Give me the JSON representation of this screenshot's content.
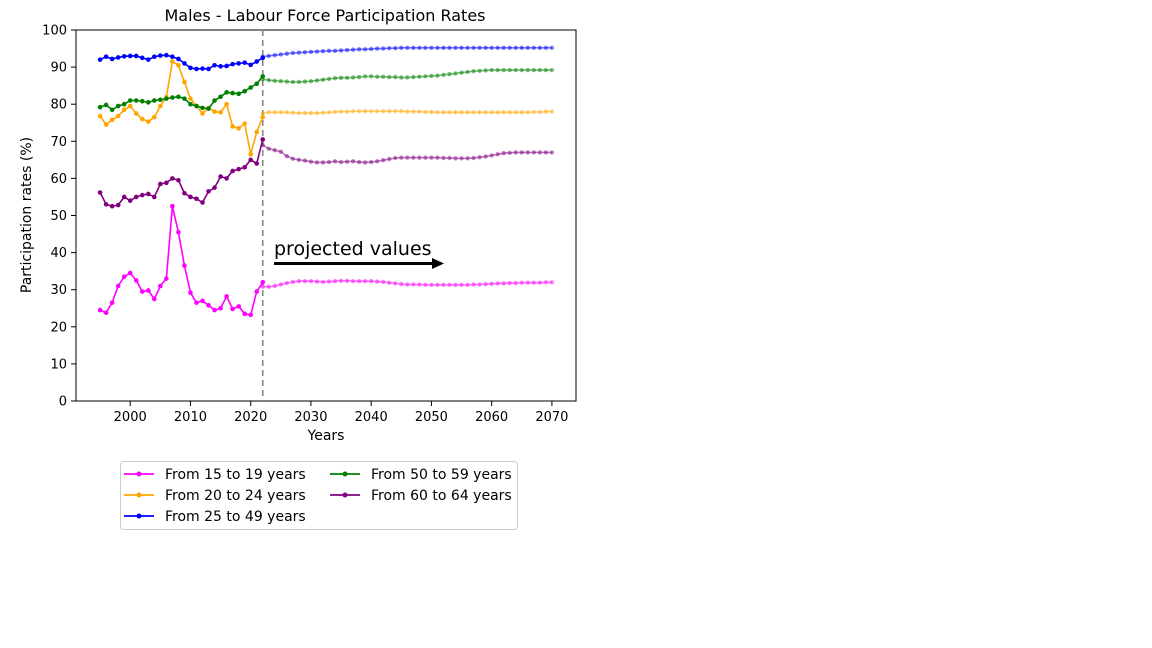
{
  "chart_data": {
    "type": "line",
    "title": "Males - Labour Force Participation Rates",
    "xlabel": "Years",
    "ylabel": "Participation rates (%)",
    "xlim": [
      1991,
      2074
    ],
    "ylim": [
      0,
      100
    ],
    "xticks": [
      2000,
      2010,
      2020,
      2030,
      2040,
      2050,
      2060,
      2070
    ],
    "yticks": [
      0,
      10,
      20,
      30,
      40,
      50,
      60,
      70,
      80,
      90,
      100
    ],
    "grid": false,
    "legend_position": "below",
    "projection_start_year": 2022,
    "annotation": "projected values",
    "historical_years": [
      1995,
      1996,
      1997,
      1998,
      1999,
      2000,
      2001,
      2002,
      2003,
      2004,
      2005,
      2006,
      2007,
      2008,
      2009,
      2010,
      2011,
      2012,
      2013,
      2014,
      2015,
      2016,
      2017,
      2018,
      2019,
      2020,
      2021,
      2022
    ],
    "series": [
      {
        "name": "From 15 to 19 years",
        "color": "#ff00ff",
        "historical": [
          24.5,
          23.8,
          26.5,
          31,
          33.5,
          34.5,
          32.5,
          29.5,
          29.8,
          27.5,
          31,
          33,
          52.5,
          45.5,
          36.5,
          29.2,
          26.5,
          27,
          25.8,
          24.5,
          25,
          28.2,
          24.8,
          25.5,
          23.5,
          23.2,
          29.5,
          32
        ],
        "projected": [
          30.8,
          30.8,
          31,
          31.4,
          31.8,
          32.1,
          32.3,
          32.3,
          32.3,
          32.2,
          32.1,
          32.2,
          32.3,
          32.4,
          32.4,
          32.3,
          32.3,
          32.3,
          32.3,
          32.2,
          32.1,
          31.9,
          31.7,
          31.5,
          31.4,
          31.4,
          31.4,
          31.3,
          31.3,
          31.3,
          31.3,
          31.3,
          31.3,
          31.3,
          31.3,
          31.4,
          31.4,
          31.5,
          31.6,
          31.7,
          31.7,
          31.8,
          31.8,
          31.9,
          31.9,
          31.9,
          31.9,
          32,
          32
        ]
      },
      {
        "name": "From 20 to 24 years",
        "color": "#ffa500",
        "historical": [
          76.8,
          74.5,
          75.8,
          76.8,
          78.5,
          79.5,
          77.5,
          76,
          75.3,
          76.5,
          79.5,
          82,
          91.5,
          90.5,
          86,
          81.5,
          79.5,
          77.5,
          79,
          78,
          77.8,
          80,
          74,
          73.5,
          74.8,
          66.5,
          72.5,
          76.5
        ],
        "projected": [
          77.5,
          77.8,
          77.8,
          77.8,
          77.8,
          77.7,
          77.6,
          77.6,
          77.6,
          77.6,
          77.7,
          77.8,
          77.9,
          78,
          78,
          78.1,
          78.1,
          78.1,
          78.1,
          78.1,
          78.1,
          78.1,
          78.1,
          78.1,
          78,
          78,
          78,
          77.9,
          77.9,
          77.8,
          77.8,
          77.8,
          77.8,
          77.8,
          77.8,
          77.8,
          77.8,
          77.8,
          77.8,
          77.8,
          77.8,
          77.8,
          77.8,
          77.8,
          77.8,
          77.9,
          77.9,
          78,
          78
        ]
      },
      {
        "name": "From 25 to 49 years",
        "color": "#0000ff",
        "historical": [
          92,
          92.8,
          92.2,
          92.6,
          92.9,
          93,
          93,
          92.5,
          92,
          92.8,
          93.1,
          93.2,
          92.8,
          92.2,
          91,
          89.8,
          89.5,
          89.6,
          89.5,
          90.5,
          90.2,
          90.3,
          90.8,
          91,
          91.2,
          90.6,
          91.5,
          92.5
        ],
        "projected": [
          92.8,
          93,
          93.2,
          93.4,
          93.6,
          93.8,
          93.9,
          94,
          94.1,
          94.2,
          94.3,
          94.4,
          94.4,
          94.5,
          94.6,
          94.7,
          94.8,
          94.8,
          94.9,
          95,
          95,
          95.1,
          95.1,
          95.2,
          95.2,
          95.2,
          95.2,
          95.2,
          95.2,
          95.2,
          95.2,
          95.2,
          95.2,
          95.2,
          95.2,
          95.2,
          95.2,
          95.2,
          95.2,
          95.2,
          95.2,
          95.2,
          95.2,
          95.2,
          95.2,
          95.2,
          95.2,
          95.2,
          95.2
        ]
      },
      {
        "name": "From 50 to 59 years",
        "color": "#008000",
        "historical": [
          79.2,
          79.8,
          78.5,
          79.5,
          80,
          81,
          81,
          80.8,
          80.5,
          81,
          81.2,
          81.5,
          81.8,
          82,
          81.5,
          80,
          79.5,
          79,
          78.8,
          81,
          82,
          83.2,
          83,
          82.8,
          83.5,
          84.5,
          85.5,
          87.5
        ],
        "projected": [
          86.7,
          86.5,
          86.3,
          86.2,
          86.1,
          86,
          86,
          86.1,
          86.2,
          86.4,
          86.6,
          86.8,
          87,
          87.1,
          87.1,
          87.2,
          87.3,
          87.5,
          87.5,
          87.4,
          87.4,
          87.3,
          87.3,
          87.2,
          87.2,
          87.3,
          87.4,
          87.5,
          87.6,
          87.7,
          87.9,
          88.1,
          88.3,
          88.5,
          88.7,
          88.9,
          89,
          89.1,
          89.2,
          89.2,
          89.2,
          89.2,
          89.2,
          89.2,
          89.2,
          89.2,
          89.2,
          89.2,
          89.2
        ]
      },
      {
        "name": "From 60 to 64 years",
        "color": "#800080",
        "historical": [
          56.2,
          53,
          52.5,
          52.8,
          55,
          54,
          55,
          55.5,
          55.8,
          55,
          58.5,
          58.8,
          60,
          59.5,
          56,
          55,
          54.5,
          53.5,
          56.5,
          57.5,
          60.5,
          60,
          62,
          62.5,
          63,
          65,
          64,
          70.5
        ],
        "projected": [
          69,
          68,
          67.6,
          67.2,
          66,
          65.3,
          65,
          64.8,
          64.5,
          64.3,
          64.3,
          64.4,
          64.6,
          64.4,
          64.5,
          64.6,
          64.4,
          64.3,
          64.4,
          64.6,
          64.9,
          65.2,
          65.5,
          65.6,
          65.6,
          65.6,
          65.6,
          65.6,
          65.6,
          65.6,
          65.5,
          65.5,
          65.4,
          65.4,
          65.4,
          65.5,
          65.7,
          65.9,
          66.2,
          66.5,
          66.8,
          66.9,
          67,
          67,
          67,
          67,
          67,
          67,
          67
        ]
      }
    ]
  }
}
